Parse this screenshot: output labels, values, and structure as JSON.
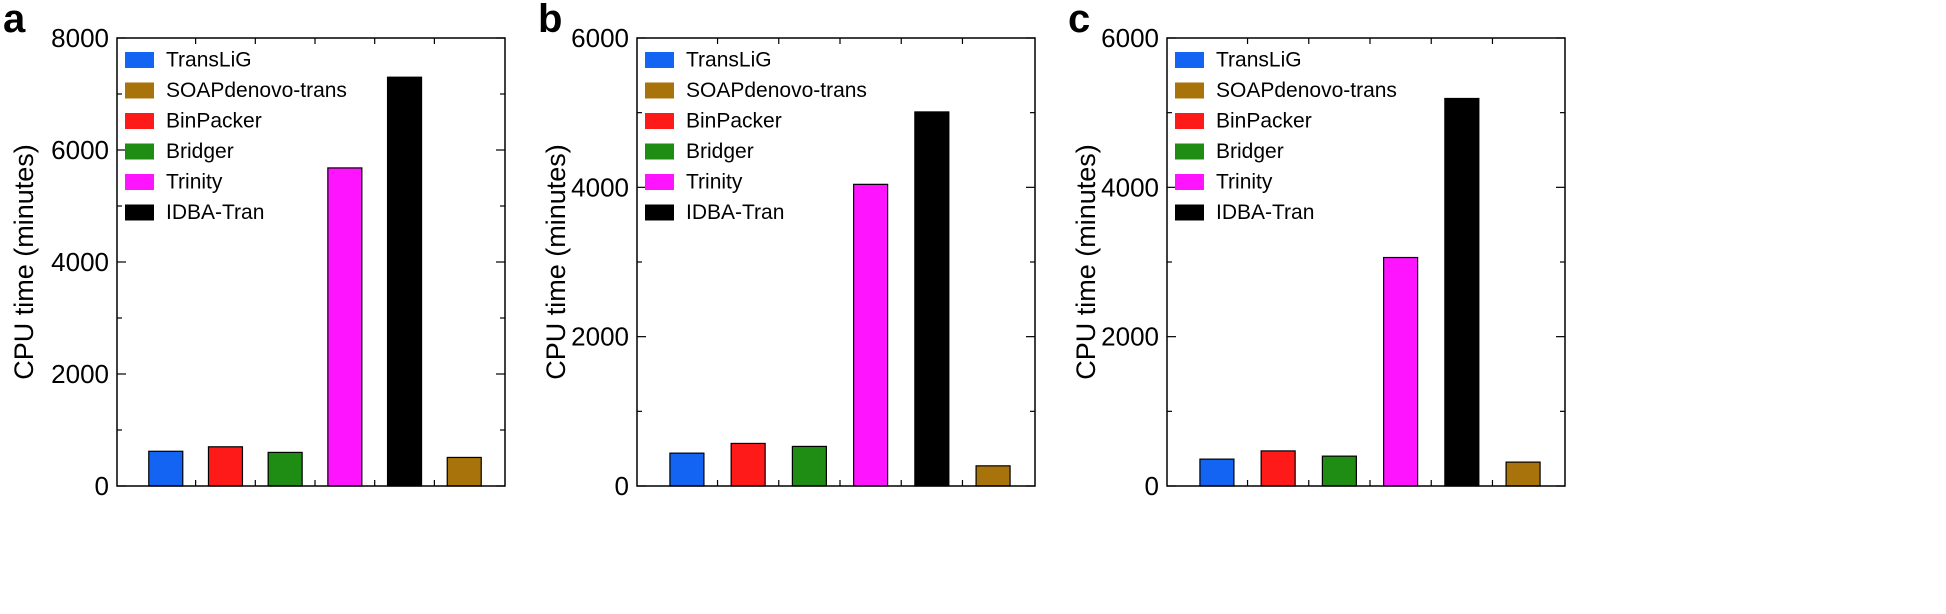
{
  "colors": {
    "TransLiG": "#1464f4",
    "SOAPdenovo-trans": "#a8730a",
    "BinPacker": "#ff1a1a",
    "Bridger": "#1f8c14",
    "Trinity": "#ff14ff",
    "IDBA-Tran": "#000000"
  },
  "chart_data": [
    {
      "type": "bar",
      "panel": "a",
      "ylabel": "CPU time (minutes)",
      "ylim": [
        0,
        8000
      ],
      "yticks": [
        0,
        2000,
        4000,
        6000,
        8000
      ],
      "legend": [
        "TransLiG",
        "SOAPdenovo-trans",
        "BinPacker",
        "Bridger",
        "Trinity",
        "IDBA-Tran"
      ],
      "legend_position": "top-left",
      "categories": [
        "TransLiG",
        "BinPacker",
        "Bridger",
        "Trinity",
        "IDBA-Tran",
        "SOAPdenovo-trans"
      ],
      "values": [
        620,
        700,
        600,
        5680,
        7300,
        510
      ]
    },
    {
      "type": "bar",
      "panel": "b",
      "ylabel": "CPU time (minutes)",
      "ylim": [
        0,
        6000
      ],
      "yticks": [
        0,
        2000,
        4000,
        6000
      ],
      "legend": [
        "TransLiG",
        "SOAPdenovo-trans",
        "BinPacker",
        "Bridger",
        "Trinity",
        "IDBA-Tran"
      ],
      "legend_position": "top-left",
      "categories": [
        "TransLiG",
        "BinPacker",
        "Bridger",
        "Trinity",
        "IDBA-Tran",
        "SOAPdenovo-trans"
      ],
      "values": [
        440,
        570,
        530,
        4040,
        5010,
        270
      ]
    },
    {
      "type": "bar",
      "panel": "c",
      "ylabel": "CPU time (minutes)",
      "ylim": [
        0,
        6000
      ],
      "yticks": [
        0,
        2000,
        4000,
        6000
      ],
      "legend": [
        "TransLiG",
        "SOAPdenovo-trans",
        "BinPacker",
        "Bridger",
        "Trinity",
        "IDBA-Tran"
      ],
      "legend_position": "top-left",
      "categories": [
        "TransLiG",
        "BinPacker",
        "Bridger",
        "Trinity",
        "IDBA-Tran",
        "SOAPdenovo-trans"
      ],
      "values": [
        360,
        470,
        400,
        3060,
        5190,
        320
      ]
    }
  ]
}
